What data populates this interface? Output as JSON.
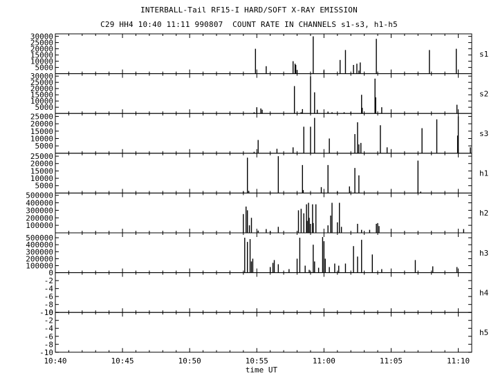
{
  "figure": {
    "title": "INTERBALL-Tail RF15-I HARD/SOFT X-RAY EMISSION",
    "subtitle": "C29 HH4 10:40 11:11 990807  COUNT RATE IN CHANNELS s1-s3, h1-h5"
  },
  "chart_data": {
    "type": "bar",
    "xlabel": "time UT",
    "xlim": [
      "10:40",
      "11:11"
    ],
    "x_ticks": [
      "10:40",
      "10:45",
      "10:50",
      "10:55",
      "11:00",
      "11:05",
      "11:10"
    ],
    "panels": [
      {
        "channel": "s1",
        "ylim": [
          0,
          32000
        ],
        "y_ticks": [
          "5000",
          "10000",
          "15000",
          "20000",
          "25000",
          "30000"
        ],
        "bars": [
          [
            14.9,
            20000
          ],
          [
            15.7,
            6000
          ],
          [
            17.7,
            10000
          ],
          [
            17.85,
            8000
          ],
          [
            17.9,
            7000
          ],
          [
            18.0,
            3000
          ],
          [
            19.2,
            30000
          ],
          [
            20.0,
            2500
          ],
          [
            21.2,
            11000
          ],
          [
            21.6,
            19000
          ],
          [
            22.2,
            7000
          ],
          [
            22.45,
            8000
          ],
          [
            22.6,
            2500
          ],
          [
            22.7,
            9000
          ],
          [
            23.9,
            28000
          ],
          [
            27.85,
            19000
          ],
          [
            29.85,
            20000
          ]
        ]
      },
      {
        "channel": "s2",
        "ylim": [
          0,
          32000
        ],
        "y_ticks": [
          "5000",
          "10000",
          "15000",
          "20000",
          "25000",
          "30000"
        ],
        "bars": [
          [
            14.8,
            1000
          ],
          [
            15.0,
            5000
          ],
          [
            15.3,
            4000
          ],
          [
            15.4,
            3000
          ],
          [
            17.8,
            22000
          ],
          [
            18.3,
            1000
          ],
          [
            18.4,
            3500
          ],
          [
            19.0,
            30000
          ],
          [
            19.3,
            17000
          ],
          [
            19.5,
            3000
          ],
          [
            20.3,
            1500
          ],
          [
            20.6,
            1000
          ],
          [
            21.5,
            1000
          ],
          [
            22.0,
            1000
          ],
          [
            22.8,
            15000
          ],
          [
            22.85,
            4500
          ],
          [
            23.8,
            28000
          ],
          [
            23.85,
            13000
          ],
          [
            24.3,
            5000
          ],
          [
            29.9,
            7000
          ]
        ]
      },
      {
        "channel": "s3",
        "ylim": [
          0,
          27000
        ],
        "y_ticks": [
          "5000",
          "10000",
          "15000",
          "20000",
          "25000"
        ],
        "bars": [
          [
            14.8,
            1000
          ],
          [
            15.1,
            9000
          ],
          [
            16.5,
            3000
          ],
          [
            17.7,
            4000
          ],
          [
            18.5,
            18000
          ],
          [
            19.0,
            18000
          ],
          [
            19.3,
            24000
          ],
          [
            20.4,
            10000
          ],
          [
            22.3,
            13000
          ],
          [
            22.5,
            21000
          ],
          [
            22.6,
            6000
          ],
          [
            22.75,
            7000
          ],
          [
            24.2,
            19000
          ],
          [
            24.7,
            4000
          ],
          [
            27.3,
            17000
          ],
          [
            28.4,
            23000
          ],
          [
            30.0,
            25000
          ],
          [
            29.95,
            12000
          ],
          [
            30.9,
            4000
          ]
        ]
      },
      {
        "channel": "h1",
        "ylim": [
          0,
          27000
        ],
        "y_ticks": [
          "5000",
          "10000",
          "15000",
          "20000",
          "25000"
        ],
        "bars": [
          [
            14.0,
            1000
          ],
          [
            14.3,
            24000
          ],
          [
            14.4,
            1500
          ],
          [
            16.6,
            25000
          ],
          [
            18.4,
            19000
          ],
          [
            18.45,
            2000
          ],
          [
            19.8,
            4000
          ],
          [
            20.3,
            19000
          ],
          [
            21.0,
            1000
          ],
          [
            21.9,
            4500
          ],
          [
            22.3,
            17000
          ],
          [
            22.6,
            12000
          ],
          [
            27.0,
            22000
          ],
          [
            27.2,
            1000
          ]
        ]
      },
      {
        "channel": "h2",
        "ylim": [
          0,
          530000
        ],
        "y_ticks": [
          "100000",
          "200000",
          "300000",
          "400000",
          "500000"
        ],
        "bars": [
          [
            14.0,
            250000
          ],
          [
            14.2,
            350000
          ],
          [
            14.3,
            300000
          ],
          [
            14.45,
            100000
          ],
          [
            14.6,
            200000
          ],
          [
            15.1,
            30000
          ],
          [
            15.7,
            50000
          ],
          [
            16.0,
            20000
          ],
          [
            16.6,
            80000
          ],
          [
            18.1,
            300000
          ],
          [
            18.3,
            320000
          ],
          [
            18.5,
            260000
          ],
          [
            18.7,
            380000
          ],
          [
            18.75,
            160000
          ],
          [
            18.85,
            400000
          ],
          [
            18.9,
            200000
          ],
          [
            19.0,
            120000
          ],
          [
            19.15,
            380000
          ],
          [
            19.2,
            130000
          ],
          [
            19.4,
            380000
          ],
          [
            20.3,
            100000
          ],
          [
            20.5,
            230000
          ],
          [
            20.6,
            400000
          ],
          [
            21.0,
            140000
          ],
          [
            21.15,
            400000
          ],
          [
            21.3,
            80000
          ],
          [
            22.5,
            120000
          ],
          [
            22.8,
            40000
          ],
          [
            23.4,
            40000
          ],
          [
            23.9,
            120000
          ],
          [
            24.0,
            130000
          ],
          [
            24.1,
            90000
          ],
          [
            30.4,
            50000
          ]
        ]
      },
      {
        "channel": "h3",
        "ylim": [
          0,
          570000
        ],
        "y_ticks": [
          "100000",
          "200000",
          "300000",
          "400000",
          "500000"
        ],
        "bars": [
          [
            14.1,
            500000
          ],
          [
            14.3,
            440000
          ],
          [
            14.5,
            480000
          ],
          [
            14.6,
            160000
          ],
          [
            14.7,
            200000
          ],
          [
            16.0,
            80000
          ],
          [
            16.2,
            140000
          ],
          [
            16.3,
            180000
          ],
          [
            16.6,
            120000
          ],
          [
            17.4,
            50000
          ],
          [
            18.0,
            200000
          ],
          [
            18.2,
            500000
          ],
          [
            18.6,
            100000
          ],
          [
            18.9,
            40000
          ],
          [
            19.2,
            400000
          ],
          [
            19.3,
            160000
          ],
          [
            19.6,
            70000
          ],
          [
            19.9,
            510000
          ],
          [
            20.0,
            450000
          ],
          [
            20.1,
            200000
          ],
          [
            20.4,
            80000
          ],
          [
            20.8,
            130000
          ],
          [
            21.1,
            100000
          ],
          [
            21.6,
            130000
          ],
          [
            22.2,
            380000
          ],
          [
            22.5,
            230000
          ],
          [
            22.8,
            470000
          ],
          [
            23.6,
            260000
          ],
          [
            24.3,
            50000
          ],
          [
            26.8,
            180000
          ],
          [
            28.1,
            90000
          ],
          [
            29.9,
            80000
          ]
        ]
      },
      {
        "channel": "h4",
        "ylim": [
          -10,
          0
        ],
        "y_ticks": [
          "-10",
          "-8",
          "-6",
          "-4",
          "-2",
          "0"
        ],
        "bars": []
      },
      {
        "channel": "h5",
        "ylim": [
          -10,
          0
        ],
        "y_ticks": [
          "-10",
          "-8",
          "-6",
          "-4",
          "-2",
          "0"
        ],
        "bars": []
      }
    ]
  }
}
